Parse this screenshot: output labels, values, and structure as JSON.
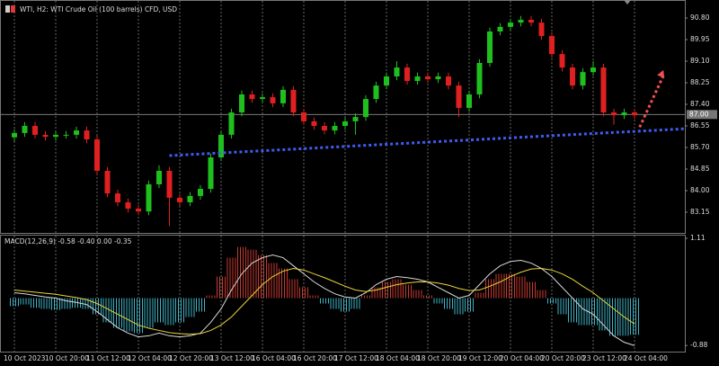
{
  "chart_data": [
    {
      "type": "candlestick",
      "title": "WTI, H2:  WTI Crude Oil (100 barrels) CFD, USD",
      "categories": [
        "10 Oct 2023",
        null,
        null,
        null,
        "10 Oct 20:00",
        null,
        null,
        null,
        "11 Oct 12:00",
        null,
        null,
        null,
        "12 Oct 04:00",
        null,
        null,
        null,
        "12 Oct 20:00",
        null,
        null,
        null,
        "13 Oct 12:00",
        null,
        null,
        null,
        "16 Oct 04:00",
        null,
        null,
        null,
        "16 Oct 20:00",
        null,
        null,
        null,
        "17 Oct 12:00",
        null,
        null,
        null,
        "18 Oct 04:00",
        null,
        null,
        null,
        "18 Oct 20:00",
        null,
        null,
        null,
        "19 Oct 12:00",
        null,
        null,
        null,
        "20 Oct 04:00",
        null,
        null,
        null,
        "20 Oct 20:00",
        null,
        null,
        null,
        "23 Oct 12:00",
        null,
        null,
        null,
        "24 Oct 04:00"
      ],
      "open": [
        86.1,
        86.27,
        86.55,
        86.2,
        86.12,
        86.2,
        86.2,
        86.37,
        86.02,
        84.78,
        83.89,
        83.54,
        83.29,
        83.18,
        84.25,
        84.78,
        83.72,
        83.54,
        83.79,
        84.07,
        85.31,
        86.2,
        87.08,
        87.79,
        87.61,
        87.68,
        87.44,
        87.97,
        87.08,
        86.73,
        86.55,
        86.37,
        86.55,
        86.73,
        86.9,
        87.61,
        88.14,
        88.5,
        88.85,
        88.32,
        88.5,
        88.39,
        88.5,
        88.14,
        87.26,
        87.79,
        89.03,
        90.27,
        90.45,
        90.62,
        90.73,
        90.62,
        90.09,
        89.38,
        88.85,
        88.14,
        88.67,
        88.85,
        87.08,
        86.97,
        87.08
      ],
      "high": [
        86.42,
        86.7,
        86.7,
        86.35,
        86.35,
        86.35,
        86.52,
        86.52,
        86.17,
        84.93,
        84.04,
        83.69,
        83.44,
        84.4,
        85.0,
        84.93,
        83.87,
        83.94,
        84.22,
        85.46,
        86.35,
        87.23,
        87.94,
        87.94,
        87.83,
        87.83,
        88.12,
        88.12,
        87.23,
        86.88,
        86.7,
        86.7,
        86.88,
        87.05,
        87.76,
        88.29,
        88.65,
        89.1,
        89.0,
        88.65,
        88.65,
        88.65,
        88.65,
        88.29,
        87.94,
        89.18,
        90.42,
        90.6,
        90.77,
        90.88,
        90.88,
        90.77,
        90.24,
        89.53,
        89.0,
        88.82,
        89.1,
        89.0,
        87.23,
        87.23,
        87.23
      ],
      "low": [
        85.95,
        86.12,
        86.05,
        85.97,
        85.97,
        86.05,
        86.05,
        85.87,
        84.63,
        83.74,
        83.39,
        83.14,
        83.03,
        83.03,
        84.1,
        82.6,
        83.39,
        83.39,
        83.64,
        83.92,
        85.16,
        86.05,
        86.93,
        87.46,
        87.46,
        87.29,
        87.29,
        86.93,
        86.58,
        86.4,
        86.22,
        86.22,
        86.4,
        86.2,
        86.75,
        87.46,
        87.99,
        88.35,
        88.17,
        88.17,
        88.24,
        88.24,
        87.99,
        86.9,
        87.11,
        87.64,
        88.88,
        90.12,
        90.3,
        90.47,
        90.47,
        89.94,
        89.23,
        88.7,
        87.99,
        87.99,
        88.52,
        86.93,
        86.6,
        86.82,
        86.82
      ],
      "close": [
        86.27,
        86.55,
        86.2,
        86.12,
        86.2,
        86.2,
        86.37,
        86.02,
        84.78,
        83.89,
        83.54,
        83.29,
        83.18,
        84.25,
        84.78,
        83.72,
        83.54,
        83.79,
        84.07,
        85.31,
        86.2,
        87.08,
        87.79,
        87.61,
        87.68,
        87.44,
        87.97,
        87.08,
        86.73,
        86.55,
        86.37,
        86.55,
        86.73,
        86.9,
        87.61,
        88.14,
        88.5,
        88.85,
        88.32,
        88.5,
        88.39,
        88.5,
        88.14,
        87.26,
        87.79,
        89.03,
        90.27,
        90.45,
        90.62,
        90.73,
        90.62,
        90.09,
        89.38,
        88.85,
        88.14,
        88.67,
        88.85,
        87.08,
        86.97,
        87.08,
        86.97
      ],
      "up_color": "#1fbf1f",
      "down_color": "#e02020",
      "ylim": [
        82.37,
        91.51
      ],
      "yticks": [
        {
          "value": 90.8,
          "label": "90.80"
        },
        {
          "value": 89.95,
          "label": "89.95"
        },
        {
          "value": 89.1,
          "label": "89.10"
        },
        {
          "value": 88.25,
          "label": "88.25"
        },
        {
          "value": 87.4,
          "label": "87.40"
        },
        {
          "value": 86.55,
          "label": "86.55"
        },
        {
          "value": 85.7,
          "label": "85.70"
        },
        {
          "value": 84.85,
          "label": "84.85"
        },
        {
          "value": 84.0,
          "label": "84.00"
        },
        {
          "value": 83.15,
          "label": "83.15"
        }
      ],
      "price_line": {
        "value": 87.0,
        "label": "87.00"
      },
      "trendline": {
        "x": [
          15,
          65
        ],
        "y": [
          85.38,
          86.44
        ],
        "color": "#3f5cf0"
      },
      "arrow": {
        "x": [
          60.5,
          62.8
        ],
        "y": [
          86.5,
          88.75
        ],
        "color": "#f05050"
      },
      "grid": true
    },
    {
      "type": "macd",
      "title": "MACD(12,26,9) -0.58 -0.40 0.00 -0.35",
      "ylim": [
        -1.01,
        1.16
      ],
      "yticks": [
        1.11,
        -0.88
      ],
      "series": [
        {
          "kind": "bar",
          "color": "#c83a30",
          "color_negative": "#3fb3c6",
          "values": [
            -0.15,
            -0.12,
            -0.18,
            -0.2,
            -0.22,
            -0.2,
            -0.18,
            -0.2,
            -0.3,
            -0.45,
            -0.55,
            -0.62,
            -0.65,
            -0.55,
            -0.45,
            -0.5,
            -0.45,
            -0.35,
            -0.25,
            0.05,
            0.4,
            0.75,
            0.95,
            0.9,
            0.8,
            0.65,
            0.55,
            0.35,
            0.2,
            0.05,
            -0.1,
            -0.2,
            -0.25,
            -0.2,
            0.05,
            0.2,
            0.3,
            0.35,
            0.25,
            0.15,
            0.05,
            -0.1,
            -0.2,
            -0.3,
            -0.25,
            0.1,
            0.35,
            0.45,
            0.45,
            0.4,
            0.3,
            0.15,
            -0.1,
            -0.3,
            -0.45,
            -0.5,
            -0.5,
            -0.6,
            -0.7,
            -0.7,
            -0.68
          ]
        },
        {
          "kind": "line",
          "color": "#d8d8d8",
          "values": [
            0.1,
            0.08,
            0.05,
            0.02,
            0,
            -0.05,
            -0.08,
            -0.12,
            -0.25,
            -0.4,
            -0.55,
            -0.65,
            -0.72,
            -0.7,
            -0.65,
            -0.7,
            -0.72,
            -0.7,
            -0.65,
            -0.45,
            -0.2,
            0.15,
            0.45,
            0.65,
            0.75,
            0.8,
            0.75,
            0.6,
            0.45,
            0.3,
            0.18,
            0.08,
            0.02,
            0,
            0.1,
            0.25,
            0.35,
            0.4,
            0.38,
            0.35,
            0.3,
            0.2,
            0.1,
            0,
            0.05,
            0.25,
            0.45,
            0.6,
            0.68,
            0.7,
            0.65,
            0.55,
            0.4,
            0.2,
            0,
            -0.2,
            -0.3,
            -0.5,
            -0.7,
            -0.82,
            -0.88
          ]
        },
        {
          "kind": "line",
          "color": "#e8d43a",
          "values": [
            0.15,
            0.13,
            0.11,
            0.09,
            0.07,
            0.04,
            0.01,
            -0.03,
            -0.1,
            -0.2,
            -0.3,
            -0.4,
            -0.5,
            -0.56,
            -0.6,
            -0.64,
            -0.66,
            -0.67,
            -0.66,
            -0.6,
            -0.5,
            -0.35,
            -0.15,
            0.05,
            0.25,
            0.4,
            0.5,
            0.55,
            0.52,
            0.45,
            0.38,
            0.3,
            0.22,
            0.15,
            0.12,
            0.15,
            0.2,
            0.25,
            0.28,
            0.3,
            0.3,
            0.28,
            0.24,
            0.18,
            0.14,
            0.15,
            0.22,
            0.3,
            0.4,
            0.48,
            0.54,
            0.55,
            0.52,
            0.45,
            0.35,
            0.22,
            0.1,
            -0.05,
            -0.2,
            -0.35,
            -0.48
          ]
        }
      ]
    }
  ]
}
